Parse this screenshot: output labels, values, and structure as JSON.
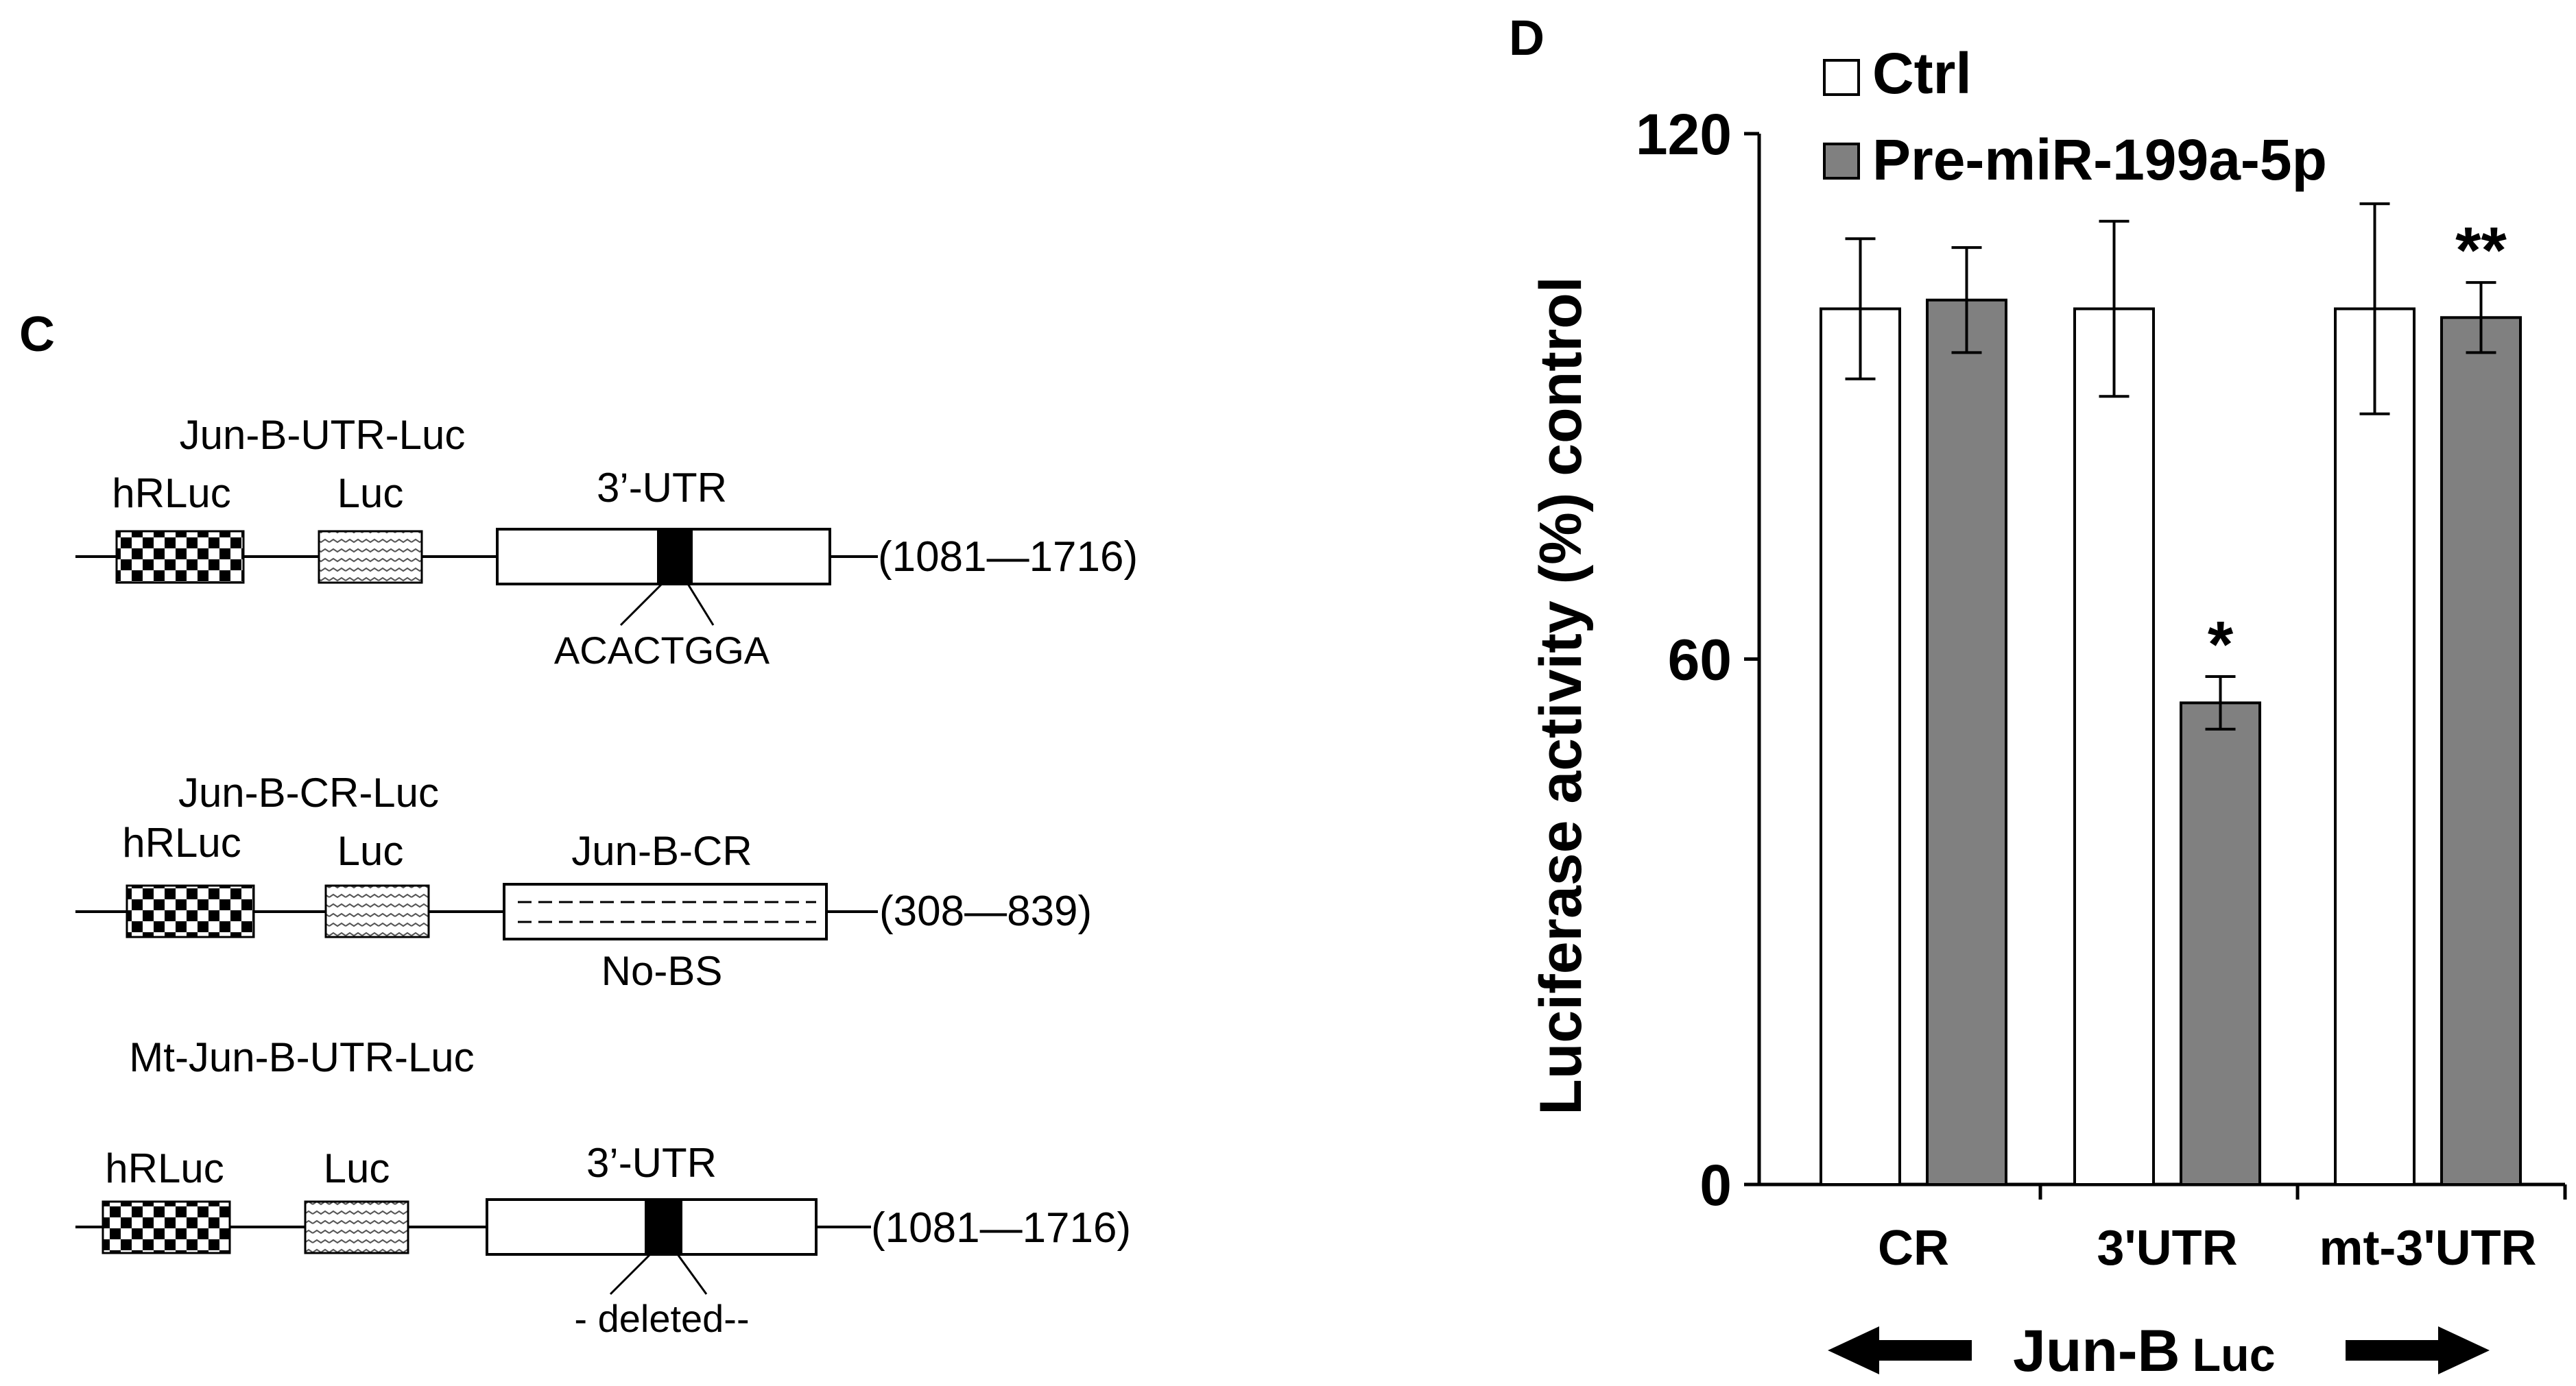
{
  "panel_c": {
    "panel_label": "C",
    "constructs": [
      {
        "name": "Jun-B-UTR-Luc",
        "box1": "hRLuc",
        "box2": "Luc",
        "region": "3’-UTR",
        "range": "(1081—1716)",
        "site": "ACACTGGA"
      },
      {
        "name": "Jun-B-CR-Luc",
        "box1": "hRLuc",
        "box2": "Luc",
        "region": "Jun-B-CR",
        "range": "(308—839)",
        "site": "No-BS"
      },
      {
        "name": "Mt-Jun-B-UTR-Luc",
        "box1": "hRLuc",
        "box2": "Luc",
        "region": "3’-UTR",
        "range": "(1081—1716)",
        "site": "- deleted--"
      }
    ]
  },
  "chart_data": {
    "type": "bar",
    "panel_label": "D",
    "title": "",
    "ylabel": "Luciferase activity (%) control",
    "xlabel_main": "Jun-B",
    "xlabel_sub": "Luc",
    "ylim": [
      0,
      120
    ],
    "yticks": [
      0,
      60,
      120
    ],
    "categories": [
      "CR",
      "3'UTR",
      "mt-3'UTR"
    ],
    "series": [
      {
        "name": "Ctrl",
        "color": "#ffffff",
        "values": [
          100,
          100,
          100
        ],
        "errors": [
          8,
          10,
          12
        ]
      },
      {
        "name": "Pre-miR-199a-5p",
        "color": "#808080",
        "values": [
          101,
          55,
          99
        ],
        "errors": [
          6,
          3,
          4
        ]
      }
    ],
    "annotations": [
      {
        "category": "3'UTR",
        "series": "Pre-miR-199a-5p",
        "text": "*"
      },
      {
        "category": "mt-3'UTR",
        "series": "Pre-miR-199a-5p",
        "text": "**"
      }
    ],
    "legend": "top"
  },
  "colors": {
    "axis": "#000000",
    "bar_ctrl": "#ffffff",
    "bar_pre": "#808080"
  }
}
